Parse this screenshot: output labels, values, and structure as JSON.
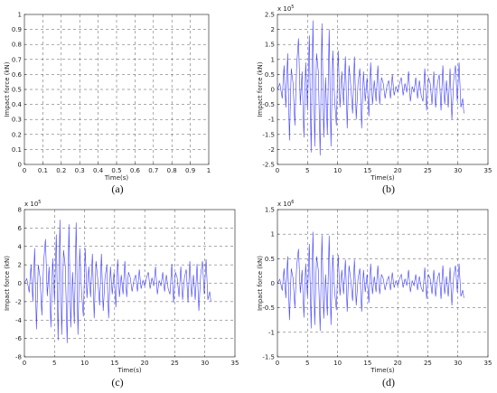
{
  "chart_data": [
    {
      "type": "line",
      "panel_label": "(a)",
      "xlabel": "Time(s)",
      "ylabel": "Impact force (kN)",
      "multiplier": "",
      "xlim": [
        0,
        1
      ],
      "ylim": [
        0,
        1
      ],
      "xticks": [
        0,
        0.1,
        0.2,
        0.3,
        0.4,
        0.5,
        0.6,
        0.7,
        0.8,
        0.9,
        1
      ],
      "yticks": [
        0,
        0.1,
        0.2,
        0.3,
        0.4,
        0.5,
        0.6,
        0.7,
        0.8,
        0.9,
        1
      ],
      "xtick_labels": [
        "0",
        "0.1",
        "0.2",
        "0.3",
        "0.4",
        "0.5",
        "0.6",
        "0.7",
        "0.8",
        "0.9",
        "1"
      ],
      "ytick_labels": [
        "0",
        "0.1",
        "0.2",
        "0.3",
        "0.4",
        "0.5",
        "0.6",
        "0.7",
        "0.8",
        "0.9",
        "1"
      ],
      "grid": true,
      "series": []
    },
    {
      "type": "line",
      "panel_label": "(b)",
      "xlabel": "Time(s)",
      "ylabel": "Impact force (kN)",
      "multiplier": "x 10",
      "multiplier_exp": "5",
      "xlim": [
        0,
        35
      ],
      "ylim": [
        -2.5,
        2.5
      ],
      "xticks": [
        0,
        5,
        10,
        15,
        20,
        25,
        30,
        35
      ],
      "yticks": [
        -2.5,
        -2,
        -1.5,
        -1,
        -0.5,
        0,
        0.5,
        1,
        1.5,
        2,
        2.5
      ],
      "xtick_labels": [
        "0",
        "5",
        "10",
        "15",
        "20",
        "25",
        "30",
        "35"
      ],
      "ytick_labels": [
        "-2.5",
        "-2",
        "-1.5",
        "-1",
        "-0.5",
        "0",
        "0.5",
        "1",
        "1.5",
        "2",
        "2.5"
      ],
      "grid": true,
      "series": [
        {
          "color": "#3f3fff",
          "x": [
            0,
            0.4,
            0.8,
            1.1,
            1.4,
            1.7,
            2.0,
            2.3,
            2.6,
            2.9,
            3.2,
            3.5,
            3.8,
            4.1,
            4.4,
            4.7,
            5.0,
            5.3,
            5.6,
            5.9,
            6.2,
            6.5,
            6.8,
            7.1,
            7.4,
            7.7,
            8.0,
            8.3,
            8.6,
            8.9,
            9.2,
            9.5,
            9.8,
            10.1,
            10.4,
            10.7,
            11.0,
            11.3,
            11.6,
            11.9,
            12.2,
            12.5,
            12.8,
            13.1,
            13.4,
            13.7,
            14.0,
            14.3,
            14.6,
            14.9,
            15.2,
            15.5,
            15.8,
            16.1,
            16.4,
            16.7,
            17.0,
            17.3,
            17.6,
            17.9,
            18.2,
            18.5,
            18.8,
            19.1,
            19.4,
            19.7,
            20.0,
            20.3,
            20.6,
            20.9,
            21.2,
            21.5,
            21.8,
            22.1,
            22.4,
            22.7,
            23.0,
            23.3,
            23.6,
            23.9,
            24.2,
            24.5,
            24.8,
            25.1,
            25.4,
            25.7,
            26.0,
            26.3,
            26.6,
            26.9,
            27.2,
            27.5,
            27.8,
            28.1,
            28.4,
            28.7,
            29.0,
            29.3,
            29.6,
            29.9,
            30.2,
            30.5,
            30.8,
            31.0
          ],
          "y": [
            0,
            0.2,
            -0.3,
            0.8,
            -0.6,
            1.2,
            -1.7,
            0.7,
            0.2,
            -1.2,
            0.8,
            1.7,
            -0.5,
            0.6,
            -1.6,
            0.9,
            -0.7,
            1.8,
            -2.1,
            2.3,
            -1.9,
            1.2,
            0.6,
            -2.2,
            2.2,
            -1.6,
            0.4,
            -1.5,
            2.0,
            -1.9,
            1.3,
            -0.3,
            -1.2,
            1.3,
            -0.6,
            0.6,
            -0.5,
            1.1,
            -1.3,
            0.8,
            0.1,
            -0.8,
            1.1,
            -1.0,
            0.2,
            0.7,
            -1.3,
            0.6,
            -0.4,
            0.4,
            -0.9,
            0.9,
            -0.5,
            0.3,
            -0.4,
            0.8,
            -0.5,
            0.4,
            0.2,
            -0.3,
            0.1,
            0.3,
            -0.3,
            0.5,
            -0.2,
            0.1,
            -0.1,
            0.2,
            0.4,
            -0.2,
            0.2,
            -0.1,
            0.6,
            -0.4,
            0.1,
            -0.1,
            0.4,
            -0.3,
            0.3,
            -0.2,
            -0.4,
            0.7,
            -0.7,
            0.4,
            0.2,
            -0.5,
            0.6,
            -0.6,
            0.2,
            0.5,
            -0.7,
            0.8,
            -0.5,
            0.3,
            -0.6,
            0.7,
            -1.0,
            0.3,
            0.8,
            -0.4,
            0.9,
            -0.6,
            -0.3,
            -0.8
          ]
        }
      ]
    },
    {
      "type": "line",
      "panel_label": "(c)",
      "xlabel": "Time(s)",
      "ylabel": "Impact force (kN)",
      "multiplier": "x 10",
      "multiplier_exp": "5",
      "xlim": [
        0,
        35
      ],
      "ylim": [
        -8,
        8
      ],
      "xticks": [
        0,
        5,
        10,
        15,
        20,
        25,
        30,
        35
      ],
      "yticks": [
        -8,
        -6,
        -4,
        -2,
        0,
        2,
        4,
        6,
        8
      ],
      "xtick_labels": [
        "0",
        "5",
        "10",
        "15",
        "20",
        "25",
        "30",
        "35"
      ],
      "ytick_labels": [
        "-8",
        "-6",
        "-4",
        "-2",
        "0",
        "2",
        "4",
        "6",
        "8"
      ],
      "grid": true,
      "series": [
        {
          "color": "#3f3fff",
          "x": [
            0,
            0.4,
            0.8,
            1.1,
            1.4,
            1.7,
            2.0,
            2.3,
            2.6,
            2.9,
            3.2,
            3.5,
            3.8,
            4.1,
            4.4,
            4.7,
            5.0,
            5.3,
            5.6,
            5.9,
            6.2,
            6.5,
            6.8,
            7.1,
            7.4,
            7.7,
            8.0,
            8.3,
            8.6,
            8.9,
            9.2,
            9.5,
            9.8,
            10.1,
            10.4,
            10.7,
            11.0,
            11.3,
            11.6,
            11.9,
            12.2,
            12.5,
            12.8,
            13.1,
            13.4,
            13.7,
            14.0,
            14.3,
            14.6,
            14.9,
            15.2,
            15.5,
            15.8,
            16.1,
            16.4,
            16.7,
            17.0,
            17.3,
            17.6,
            17.9,
            18.2,
            18.5,
            18.8,
            19.1,
            19.4,
            19.7,
            20.0,
            20.3,
            20.6,
            20.9,
            21.2,
            21.5,
            21.8,
            22.1,
            22.4,
            22.7,
            23.0,
            23.3,
            23.6,
            23.9,
            24.2,
            24.5,
            24.8,
            25.1,
            25.4,
            25.7,
            26.0,
            26.3,
            26.6,
            26.9,
            27.2,
            27.5,
            27.8,
            28.1,
            28.4,
            28.7,
            29.0,
            29.3,
            29.6,
            29.9,
            30.2,
            30.5,
            30.8,
            31.0
          ],
          "y": [
            0,
            0.5,
            -1.0,
            2.0,
            -2.0,
            3.8,
            -5.0,
            2.0,
            0.6,
            -3.5,
            2.3,
            4.8,
            -1.4,
            1.8,
            -4.8,
            2.7,
            -2.0,
            5.3,
            -6.2,
            6.9,
            -5.6,
            3.6,
            1.8,
            -6.5,
            6.4,
            -4.8,
            1.2,
            -4.4,
            6.6,
            -5.6,
            3.8,
            -1.0,
            -3.6,
            3.8,
            -1.6,
            1.8,
            -1.5,
            3.2,
            -3.8,
            2.4,
            0.4,
            -2.4,
            3.2,
            -3.0,
            0.6,
            2.0,
            -3.8,
            1.8,
            -1.2,
            1.2,
            -2.6,
            2.6,
            -1.5,
            0.9,
            -1.2,
            2.4,
            -1.5,
            1.2,
            0.6,
            -0.9,
            0.3,
            0.9,
            -0.9,
            1.5,
            -0.6,
            0.3,
            -0.3,
            0.6,
            1.2,
            -0.6,
            0.6,
            -0.3,
            1.8,
            -1.2,
            0.3,
            -0.3,
            1.2,
            -0.9,
            0.9,
            -0.6,
            -1.2,
            2.1,
            -2.1,
            1.2,
            0.6,
            -1.5,
            1.8,
            -1.8,
            0.6,
            1.5,
            -2.1,
            2.4,
            -1.5,
            0.9,
            -1.8,
            2.1,
            -3.0,
            0.9,
            2.4,
            -1.2,
            2.6,
            -1.8,
            -0.9,
            -2.0
          ]
        }
      ]
    },
    {
      "type": "line",
      "panel_label": "(d)",
      "xlabel": "Time(s)",
      "ylabel": "Impact force (kN)",
      "multiplier": "x 10",
      "multiplier_exp": "6",
      "xlim": [
        0,
        35
      ],
      "ylim": [
        -1.5,
        1.5
      ],
      "xticks": [
        0,
        5,
        10,
        15,
        20,
        25,
        30,
        35
      ],
      "yticks": [
        -1.5,
        -1,
        -0.5,
        0,
        0.5,
        1,
        1.5
      ],
      "xtick_labels": [
        "0",
        "5",
        "10",
        "15",
        "20",
        "25",
        "30",
        "35"
      ],
      "ytick_labels": [
        "-1.5",
        "-1",
        "-0.5",
        "0",
        "0.5",
        "1",
        "1.5"
      ],
      "grid": true,
      "series": [
        {
          "color": "#3f3fff",
          "x": [
            0,
            0.4,
            0.8,
            1.1,
            1.4,
            1.7,
            2.0,
            2.3,
            2.6,
            2.9,
            3.2,
            3.5,
            3.8,
            4.1,
            4.4,
            4.7,
            5.0,
            5.3,
            5.6,
            5.9,
            6.2,
            6.5,
            6.8,
            7.1,
            7.4,
            7.7,
            8.0,
            8.3,
            8.6,
            8.9,
            9.2,
            9.5,
            9.8,
            10.1,
            10.4,
            10.7,
            11.0,
            11.3,
            11.6,
            11.9,
            12.2,
            12.5,
            12.8,
            13.1,
            13.4,
            13.7,
            14.0,
            14.3,
            14.6,
            14.9,
            15.2,
            15.5,
            15.8,
            16.1,
            16.4,
            16.7,
            17.0,
            17.3,
            17.6,
            17.9,
            18.2,
            18.5,
            18.8,
            19.1,
            19.4,
            19.7,
            20.0,
            20.3,
            20.6,
            20.9,
            21.2,
            21.5,
            21.8,
            22.1,
            22.4,
            22.7,
            23.0,
            23.3,
            23.6,
            23.9,
            24.2,
            24.5,
            24.8,
            25.1,
            25.4,
            25.7,
            26.0,
            26.3,
            26.6,
            26.9,
            27.2,
            27.5,
            27.8,
            28.1,
            28.4,
            28.7,
            29.0,
            29.3,
            29.6,
            29.9,
            30.2,
            30.5,
            30.8,
            31.0
          ],
          "y": [
            0,
            0.08,
            -0.15,
            0.3,
            -0.3,
            0.55,
            -0.75,
            0.3,
            0.1,
            -0.5,
            0.35,
            0.7,
            -0.2,
            0.27,
            -0.7,
            0.4,
            -0.3,
            0.8,
            -0.92,
            1.05,
            -0.85,
            0.55,
            0.27,
            -0.97,
            0.98,
            -0.72,
            0.18,
            -0.66,
            0.97,
            -0.85,
            0.58,
            -0.15,
            -0.55,
            0.58,
            -0.25,
            0.27,
            -0.22,
            0.48,
            -0.58,
            0.36,
            0.06,
            -0.36,
            0.48,
            -0.45,
            0.09,
            0.3,
            -0.58,
            0.27,
            -0.18,
            0.18,
            -0.4,
            0.4,
            -0.22,
            0.14,
            -0.18,
            0.36,
            -0.22,
            0.18,
            0.09,
            -0.14,
            0.05,
            0.14,
            -0.14,
            0.22,
            -0.09,
            0.05,
            -0.05,
            0.09,
            0.18,
            -0.09,
            0.09,
            -0.05,
            0.27,
            -0.18,
            0.05,
            -0.05,
            0.18,
            -0.14,
            0.14,
            -0.09,
            -0.18,
            0.32,
            -0.32,
            0.18,
            0.09,
            -0.22,
            0.27,
            -0.27,
            0.09,
            0.22,
            -0.32,
            0.36,
            -0.22,
            0.14,
            -0.27,
            0.32,
            -0.45,
            0.14,
            0.36,
            -0.18,
            0.4,
            -0.27,
            -0.14,
            -0.3
          ]
        }
      ]
    }
  ]
}
